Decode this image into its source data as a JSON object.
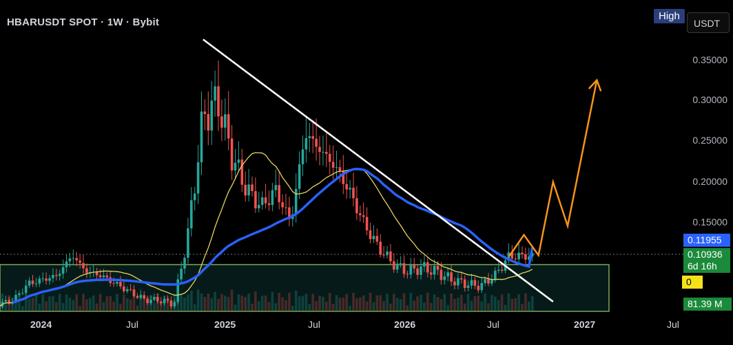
{
  "header": {
    "title": "HBARUSDT SPOT · 1W · Bybit"
  },
  "toolbar": {
    "high_label": "High",
    "currency_label": "USDT"
  },
  "price_axis": {
    "ticks": [
      "0.35000",
      "0.30000",
      "0.25000",
      "0.20000",
      "0.15000"
    ]
  },
  "time_axis": {
    "ticks": [
      "2024",
      "Jul",
      "2025",
      "Jul",
      "2026",
      "Jul",
      "2027",
      "Jul"
    ]
  },
  "tags": {
    "ma_value": "0.11955",
    "last_price": "0.10936",
    "countdown": "6d 16h",
    "zero_value": "0",
    "volume": "81.39 M"
  },
  "colors": {
    "up": "#26a69a",
    "down": "#ef5350",
    "ma_long": "#2962ff",
    "ma_short": "#e8d45a",
    "trendline": "#ffffff",
    "projection": "#f7931a",
    "zone_border": "#9ccc65",
    "tag_blue": "#2962ff",
    "tag_green": "#1b8a3a",
    "tag_yellow": "#f5e31a"
  },
  "chart_data": {
    "type": "candlestick",
    "symbol": "HBARUSDT",
    "interval": "1W",
    "exchange": "Bybit",
    "y_axis": {
      "ticks": [
        0.15,
        0.2,
        0.25,
        0.3,
        0.35
      ]
    },
    "x_axis": {
      "ticks": [
        "2024",
        "Jul",
        "2025",
        "Jul",
        "2026",
        "Jul",
        "2027",
        "Jul"
      ]
    },
    "close_series": [
      [
        "2023-10",
        0.05
      ],
      [
        "2023-11",
        0.055
      ],
      [
        "2023-12",
        0.075
      ],
      [
        "2024-01",
        0.08
      ],
      [
        "2024-02",
        0.085
      ],
      [
        "2024-03",
        0.11
      ],
      [
        "2024-04",
        0.09
      ],
      [
        "2024-05",
        0.085
      ],
      [
        "2024-06",
        0.075
      ],
      [
        "2024-07",
        0.065
      ],
      [
        "2024-08",
        0.055
      ],
      [
        "2024-09",
        0.055
      ],
      [
        "2024-10",
        0.05
      ],
      [
        "2024-11",
        0.14
      ],
      [
        "2024-12",
        0.28
      ],
      [
        "2025-01",
        0.3
      ],
      [
        "2025-02",
        0.23
      ],
      [
        "2025-03",
        0.19
      ],
      [
        "2025-04",
        0.17
      ],
      [
        "2025-05",
        0.19
      ],
      [
        "2025-06",
        0.15
      ],
      [
        "2025-07",
        0.26
      ],
      [
        "2025-08",
        0.24
      ],
      [
        "2025-09",
        0.22
      ],
      [
        "2025-10",
        0.19
      ],
      [
        "2025-11",
        0.15
      ],
      [
        "2025-12",
        0.12
      ],
      [
        "2026-01",
        0.1
      ],
      [
        "2026-02",
        0.09
      ],
      [
        "2026-03",
        0.095
      ],
      [
        "2026-04",
        0.09
      ],
      [
        "2026-05",
        0.08
      ],
      [
        "2026-06",
        0.075
      ],
      [
        "2026-07",
        0.072
      ],
      [
        "2026-08",
        0.085
      ],
      [
        "2026-09",
        0.109
      ]
    ],
    "last_price": 0.10936,
    "moving_average_value": 0.11955,
    "volume": "81.39 M",
    "trendline": {
      "from": [
        "2024-12",
        0.375
      ],
      "to": [
        "2026-12",
        0.053
      ]
    },
    "projection": [
      [
        "2026-09",
        0.109
      ],
      [
        "2026-10",
        0.135
      ],
      [
        "2026-11",
        0.11
      ],
      [
        "2026-12",
        0.2
      ],
      [
        "2027-01",
        0.146
      ],
      [
        "2027-03",
        0.325
      ]
    ],
    "support_zone": [
      0.06,
      0.092
    ],
    "legend": "none",
    "grid": false
  }
}
